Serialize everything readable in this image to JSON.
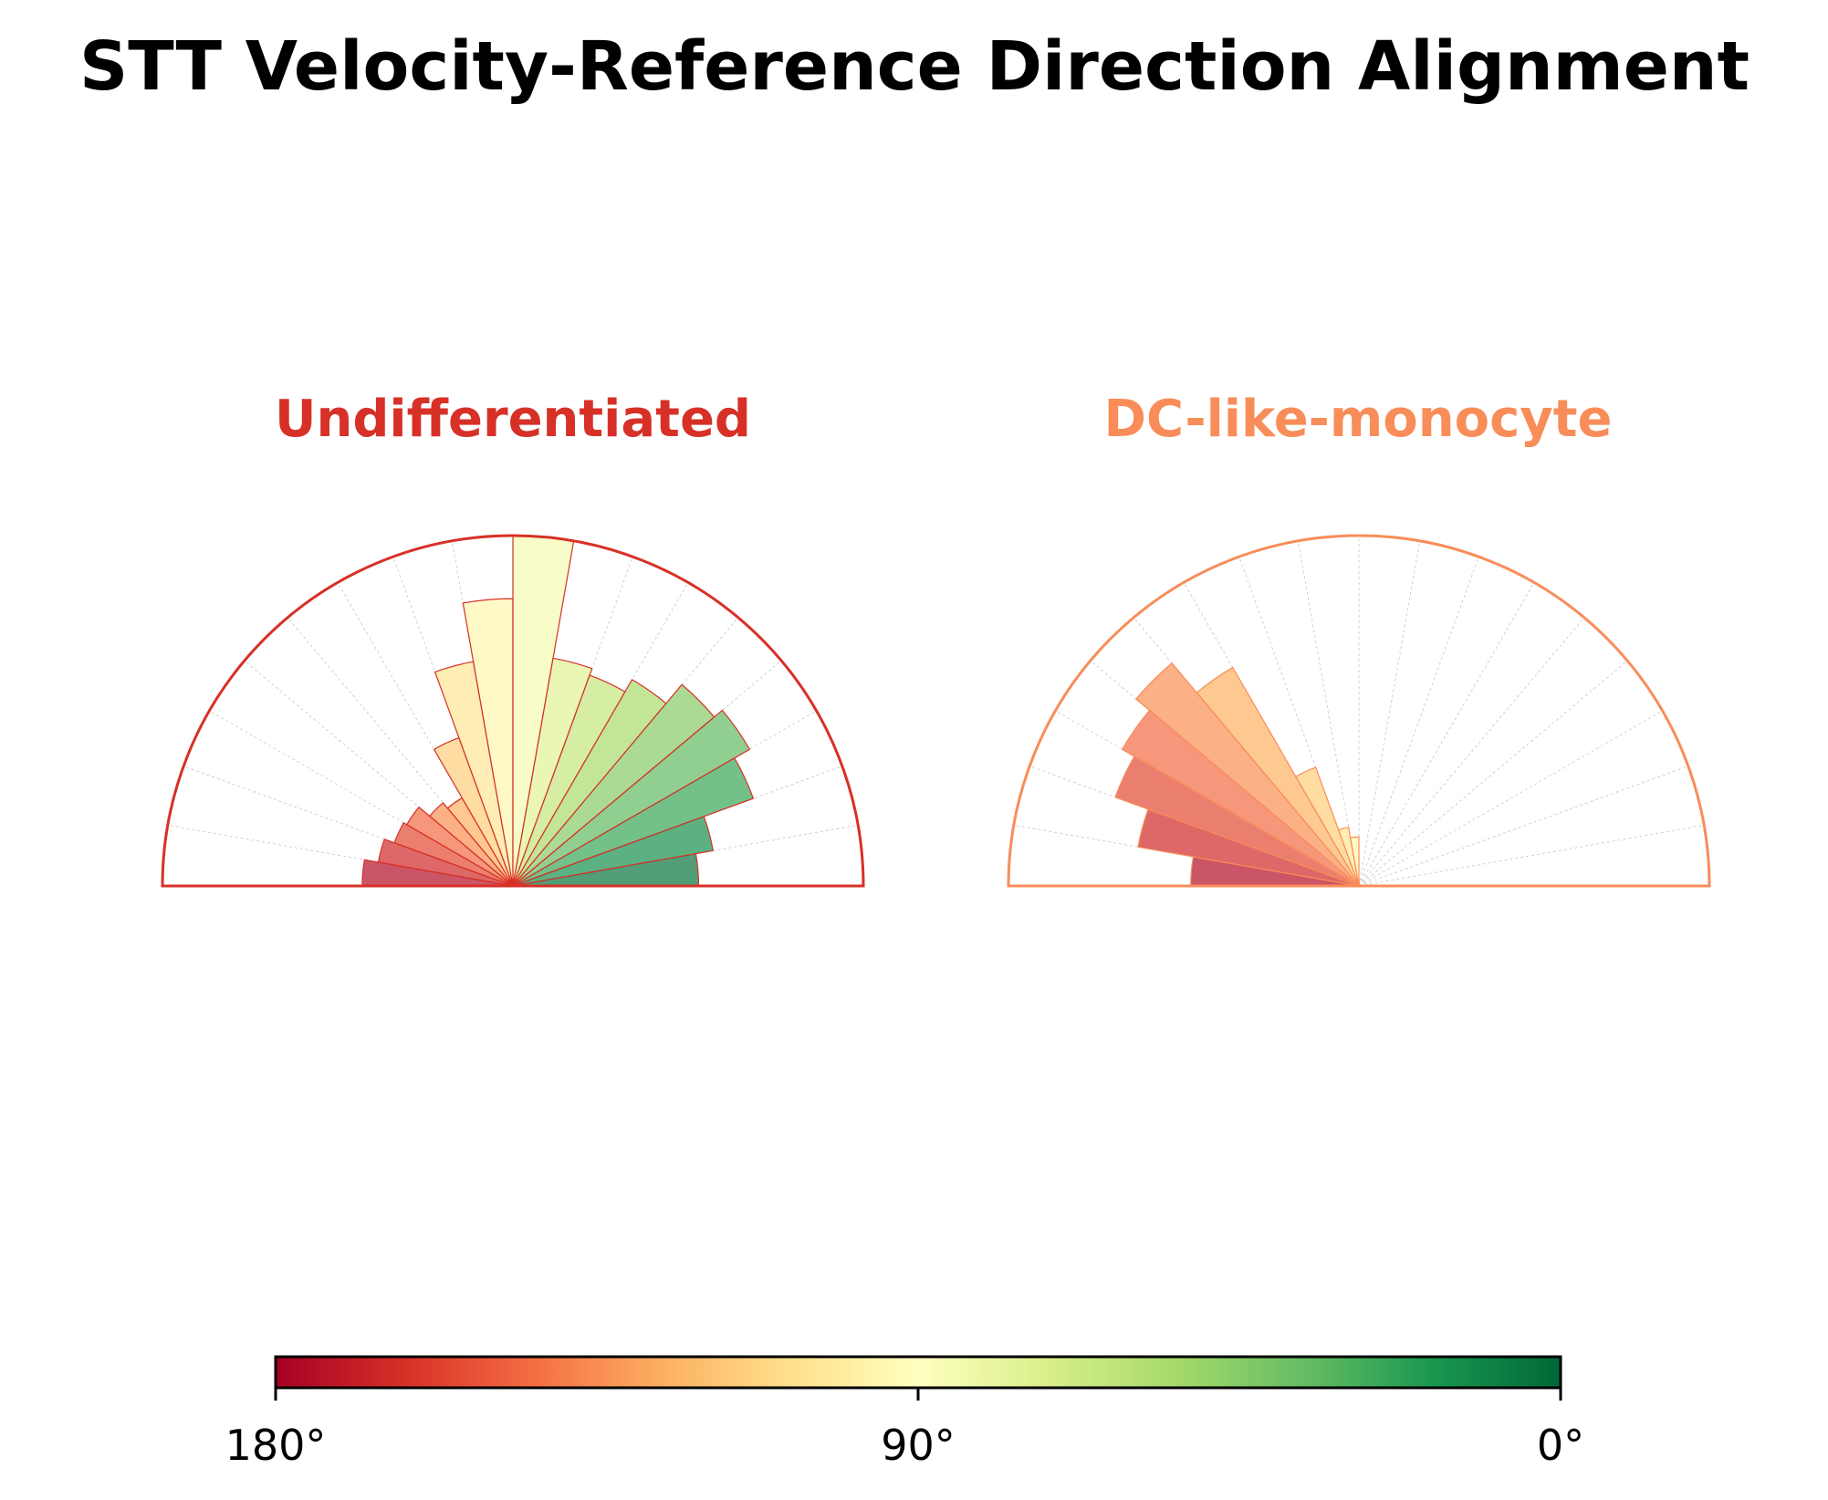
{
  "chart_data": {
    "type": "polar-bar",
    "title": "STT Velocity-Reference Direction Alignment",
    "angle_range_deg": [
      0,
      180
    ],
    "bin_width_deg": 10,
    "bin_centers_deg": [
      175,
      165,
      155,
      145,
      135,
      125,
      115,
      105,
      95,
      85,
      75,
      65,
      55,
      45,
      35,
      25,
      15,
      5
    ],
    "panels": [
      {
        "name": "Undifferentiated",
        "title_color": "#d73027",
        "values": [
          0.43,
          0.39,
          0.36,
          0.35,
          0.31,
          0.29,
          0.45,
          0.65,
          0.82,
          1.0,
          0.66,
          0.64,
          0.68,
          0.75,
          0.78,
          0.73,
          0.58,
          0.53
        ]
      },
      {
        "name": "DC-like-monocyte",
        "title_color": "#f88d59",
        "values": [
          0.48,
          0.64,
          0.74,
          0.78,
          0.83,
          0.72,
          0.36,
          0.17,
          0.14,
          0.01,
          0.0,
          0.0,
          0.0,
          0.0,
          0.0,
          0.0,
          0.0,
          0.0
        ]
      }
    ],
    "colorbar": {
      "colormap": "RdYlGn",
      "range_deg": [
        180,
        0
      ],
      "tick_labels": [
        "180°",
        "90°",
        "0°"
      ]
    },
    "grid": true
  }
}
